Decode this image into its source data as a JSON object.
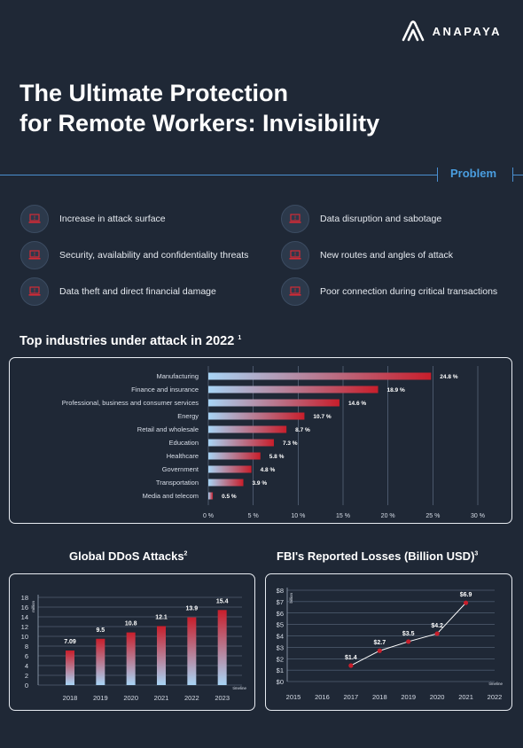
{
  "brand": "ANAPAYA",
  "title_line1": "The Ultimate Protection",
  "title_line2": "for Remote Workers: Invisibility",
  "problem_label": "Problem",
  "threats": [
    "Increase in attack surface",
    "Security, availability and confidentiality threats",
    "Data theft and direct financial damage",
    "Data disruption and sabotage",
    "New routes and angles of attack",
    "Poor connection during critical transactions"
  ],
  "threat_icon": "alert-laptop-icon",
  "colors": {
    "background": "#1f2836",
    "accent": "#4a9ee0",
    "bar_red": "#c81e2b",
    "bar_light": "#a8d4f5"
  },
  "chart_data": [
    {
      "type": "bar",
      "orientation": "horizontal",
      "title": "Top industries under attack in 2022",
      "title_footnote": "1",
      "categories": [
        "Manufacturing",
        "Finance and insurance",
        "Professional, business and consumer services",
        "Energy",
        "Retail and wholesale",
        "Education",
        "Healthcare",
        "Government",
        "Transportation",
        "Media and telecom"
      ],
      "values": [
        24.8,
        18.9,
        14.6,
        10.7,
        8.7,
        7.3,
        5.8,
        4.8,
        3.9,
        0.5
      ],
      "value_labels": [
        "24.8 %",
        "18.9 %",
        "14.6 %",
        "10.7 %",
        "8.7 %",
        "7.3 %",
        "5.8 %",
        "4.8 %",
        "3.9 %",
        "0.5 %"
      ],
      "xlim": [
        0,
        30
      ],
      "xticks": [
        "0 %",
        "5 %",
        "10 %",
        "15 %",
        "20 %",
        "25 %",
        "30 %"
      ],
      "grid": true
    },
    {
      "type": "bar",
      "title": "Global DDoS Attacks",
      "title_footnote": "2",
      "categories": [
        "2018",
        "2019",
        "2020",
        "2021",
        "2022",
        "2023"
      ],
      "values": [
        7.09,
        9.5,
        10.8,
        12.1,
        13.9,
        15.4
      ],
      "value_labels": [
        "7.09",
        "9.5",
        "10.8",
        "12.1",
        "13.9",
        "15.4"
      ],
      "ylabel": "million",
      "xlabel": "timeline",
      "ylim": [
        0,
        18
      ],
      "yticks": [
        "0",
        "2",
        "4",
        "6",
        "8",
        "10",
        "12",
        "14",
        "16",
        "18"
      ],
      "grid": true
    },
    {
      "type": "line",
      "title": "FBI's Reported Losses (Billion USD)",
      "title_footnote": "3",
      "x": [
        "2017",
        "2018",
        "2019",
        "2020",
        "2021"
      ],
      "y": [
        1.4,
        2.7,
        3.5,
        4.2,
        6.9
      ],
      "value_labels": [
        "$1.4",
        "$2.7",
        "$3.5",
        "$4.2",
        "$6.9"
      ],
      "xticks": [
        "2015",
        "2016",
        "2017",
        "2018",
        "2019",
        "2020",
        "2021",
        "2022"
      ],
      "yticks": [
        "$0",
        "$1",
        "$2",
        "$3",
        "$4",
        "$5",
        "$6",
        "$7",
        "$8"
      ],
      "ylabel": "billion",
      "xlabel": "timeline",
      "ylim": [
        0,
        8
      ],
      "grid": true
    }
  ]
}
